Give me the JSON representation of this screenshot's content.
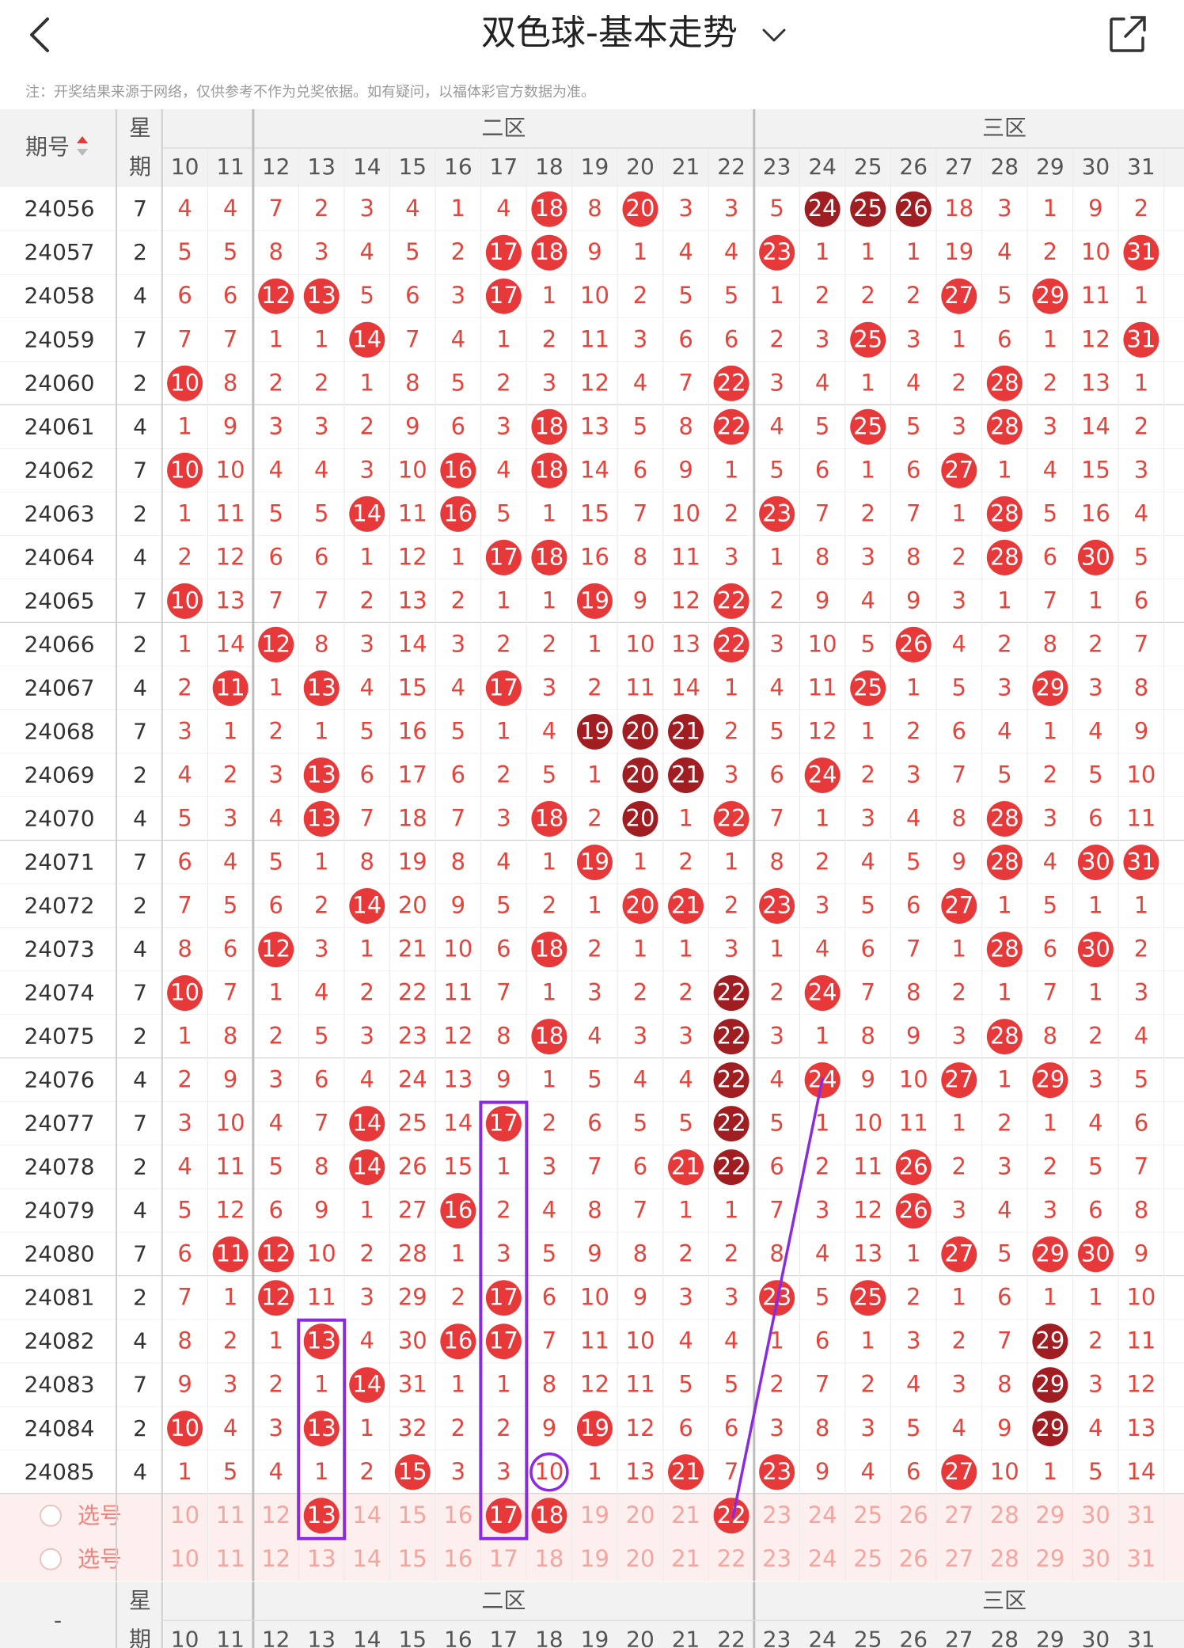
{
  "header": {
    "title": "双色球-基本走势",
    "note": "注：开奖结果来源于网络，仅供参考不作为兑奖依据。如有疑问，以福体彩官方数据为准。"
  },
  "table": {
    "period_label": "期号",
    "weekday_label": [
      "星",
      "期"
    ],
    "zones": [
      "二区",
      "三区"
    ],
    "columns": [
      10,
      11,
      12,
      13,
      14,
      15,
      16,
      17,
      18,
      19,
      20,
      21,
      22,
      23,
      24,
      25,
      26,
      27,
      28,
      29,
      30,
      31
    ],
    "rows": [
      {
        "period": "24056",
        "weekday": 7,
        "cells": [
          4,
          4,
          7,
          2,
          3,
          4,
          1,
          4,
          18,
          8,
          20,
          3,
          3,
          5,
          24,
          25,
          26,
          18,
          3,
          1,
          9,
          2
        ],
        "marks": "........h.h...ddd....."
      },
      {
        "period": "24057",
        "weekday": 2,
        "cells": [
          5,
          5,
          8,
          3,
          4,
          5,
          2,
          17,
          18,
          9,
          1,
          4,
          4,
          23,
          1,
          1,
          1,
          19,
          4,
          2,
          10,
          31
        ],
        "marks": ".......hh....h.......h"
      },
      {
        "period": "24058",
        "weekday": 4,
        "cells": [
          6,
          6,
          12,
          13,
          5,
          6,
          3,
          17,
          1,
          10,
          2,
          5,
          5,
          1,
          2,
          2,
          2,
          27,
          5,
          29,
          11,
          1
        ],
        "marks": "..hh...h.........h.h.."
      },
      {
        "period": "24059",
        "weekday": 7,
        "cells": [
          7,
          7,
          1,
          1,
          14,
          7,
          4,
          1,
          2,
          11,
          3,
          6,
          6,
          2,
          3,
          25,
          3,
          1,
          6,
          1,
          12,
          31
        ],
        "marks": "....h..........h.....h"
      },
      {
        "period": "24060",
        "weekday": 2,
        "cells": [
          10,
          8,
          2,
          2,
          1,
          8,
          5,
          2,
          3,
          12,
          4,
          7,
          22,
          3,
          4,
          1,
          4,
          2,
          28,
          2,
          13,
          1
        ],
        "marks": "h...........h.....h..."
      },
      {
        "period": "24061",
        "weekday": 4,
        "cells": [
          1,
          9,
          3,
          3,
          2,
          9,
          6,
          3,
          18,
          13,
          5,
          8,
          22,
          4,
          5,
          25,
          5,
          3,
          28,
          3,
          14,
          2
        ],
        "marks": "........h...h..h..h..."
      },
      {
        "period": "24062",
        "weekday": 7,
        "cells": [
          10,
          10,
          4,
          4,
          3,
          10,
          16,
          4,
          18,
          14,
          6,
          9,
          1,
          5,
          6,
          1,
          6,
          27,
          1,
          4,
          15,
          3
        ],
        "marks": "h.....h.h........h...."
      },
      {
        "period": "24063",
        "weekday": 2,
        "cells": [
          1,
          11,
          5,
          5,
          14,
          11,
          16,
          5,
          1,
          15,
          7,
          10,
          2,
          23,
          7,
          2,
          7,
          1,
          28,
          5,
          16,
          4
        ],
        "marks": "....h.h......h....h..."
      },
      {
        "period": "24064",
        "weekday": 4,
        "cells": [
          2,
          12,
          6,
          6,
          1,
          12,
          1,
          17,
          18,
          16,
          8,
          11,
          3,
          1,
          8,
          3,
          8,
          2,
          28,
          6,
          30,
          5
        ],
        "marks": ".......hh.........h.h."
      },
      {
        "period": "24065",
        "weekday": 7,
        "cells": [
          10,
          13,
          7,
          7,
          2,
          13,
          2,
          1,
          1,
          19,
          9,
          12,
          22,
          2,
          9,
          4,
          9,
          3,
          1,
          7,
          1,
          6
        ],
        "marks": "h........h..h........."
      },
      {
        "period": "24066",
        "weekday": 2,
        "cells": [
          1,
          14,
          12,
          8,
          3,
          14,
          3,
          2,
          2,
          1,
          10,
          13,
          22,
          3,
          10,
          5,
          26,
          4,
          2,
          8,
          2,
          7
        ],
        "marks": "..h.........h...h....."
      },
      {
        "period": "24067",
        "weekday": 4,
        "cells": [
          2,
          11,
          1,
          13,
          4,
          15,
          4,
          17,
          3,
          2,
          11,
          14,
          1,
          4,
          11,
          25,
          1,
          5,
          3,
          29,
          3,
          8
        ],
        "marks": ".h.h...h.......h...h.."
      },
      {
        "period": "24068",
        "weekday": 7,
        "cells": [
          3,
          1,
          2,
          1,
          5,
          16,
          5,
          1,
          4,
          19,
          20,
          21,
          2,
          5,
          12,
          1,
          2,
          6,
          4,
          1,
          4,
          9
        ],
        "marks": ".........ddd.........."
      },
      {
        "period": "24069",
        "weekday": 2,
        "cells": [
          4,
          2,
          3,
          13,
          6,
          17,
          6,
          2,
          5,
          1,
          20,
          21,
          3,
          6,
          24,
          2,
          3,
          7,
          5,
          2,
          5,
          10
        ],
        "marks": "...h......dd..h......."
      },
      {
        "period": "24070",
        "weekday": 4,
        "cells": [
          5,
          3,
          4,
          13,
          7,
          18,
          7,
          3,
          18,
          2,
          20,
          1,
          22,
          7,
          1,
          3,
          4,
          8,
          28,
          3,
          6,
          11
        ],
        "marks": "...h....h.d.h.....h..."
      },
      {
        "period": "24071",
        "weekday": 7,
        "cells": [
          6,
          4,
          5,
          1,
          8,
          19,
          8,
          4,
          1,
          19,
          1,
          2,
          1,
          8,
          2,
          4,
          5,
          9,
          28,
          4,
          30,
          31
        ],
        "marks": ".........h........h.hh"
      },
      {
        "period": "24072",
        "weekday": 2,
        "cells": [
          7,
          5,
          6,
          2,
          14,
          20,
          9,
          5,
          2,
          1,
          20,
          21,
          2,
          23,
          3,
          5,
          6,
          27,
          1,
          5,
          1,
          1
        ],
        "marks": "....h.....hh.h...h...."
      },
      {
        "period": "24073",
        "weekday": 4,
        "cells": [
          8,
          6,
          12,
          3,
          1,
          21,
          10,
          6,
          18,
          2,
          1,
          1,
          3,
          1,
          4,
          6,
          7,
          1,
          28,
          6,
          30,
          2
        ],
        "marks": "..h.....h.........h.h."
      },
      {
        "period": "24074",
        "weekday": 7,
        "cells": [
          10,
          7,
          1,
          4,
          2,
          22,
          11,
          7,
          1,
          3,
          2,
          2,
          22,
          2,
          24,
          7,
          8,
          2,
          1,
          7,
          1,
          3
        ],
        "marks": "h...........d.h......."
      },
      {
        "period": "24075",
        "weekday": 2,
        "cells": [
          1,
          8,
          2,
          5,
          3,
          23,
          12,
          8,
          18,
          4,
          3,
          3,
          22,
          3,
          1,
          8,
          9,
          3,
          28,
          8,
          2,
          4
        ],
        "marks": "........h...d.....h..."
      },
      {
        "period": "24076",
        "weekday": 4,
        "cells": [
          2,
          9,
          3,
          6,
          4,
          24,
          13,
          9,
          1,
          5,
          4,
          4,
          22,
          4,
          24,
          9,
          10,
          27,
          1,
          29,
          3,
          5
        ],
        "marks": "............d.h..h.h.."
      },
      {
        "period": "24077",
        "weekday": 7,
        "cells": [
          3,
          10,
          4,
          7,
          14,
          25,
          14,
          17,
          2,
          6,
          5,
          5,
          22,
          5,
          1,
          10,
          11,
          1,
          2,
          1,
          4,
          6
        ],
        "marks": "....h..h....d........."
      },
      {
        "period": "24078",
        "weekday": 2,
        "cells": [
          4,
          11,
          5,
          8,
          14,
          26,
          15,
          1,
          3,
          7,
          6,
          21,
          22,
          6,
          2,
          11,
          26,
          2,
          3,
          2,
          5,
          7
        ],
        "marks": "....h......hd...h....."
      },
      {
        "period": "24079",
        "weekday": 4,
        "cells": [
          5,
          12,
          6,
          9,
          1,
          27,
          16,
          2,
          4,
          8,
          7,
          1,
          1,
          7,
          3,
          12,
          26,
          3,
          4,
          3,
          6,
          8
        ],
        "marks": "......h.........h....."
      },
      {
        "period": "24080",
        "weekday": 7,
        "cells": [
          6,
          11,
          12,
          10,
          2,
          28,
          1,
          3,
          5,
          9,
          8,
          2,
          2,
          8,
          4,
          13,
          1,
          27,
          5,
          29,
          30,
          9
        ],
        "marks": ".hh..............h.hh."
      },
      {
        "period": "24081",
        "weekday": 2,
        "cells": [
          7,
          1,
          12,
          11,
          3,
          29,
          2,
          17,
          6,
          10,
          9,
          3,
          3,
          23,
          5,
          25,
          2,
          1,
          6,
          1,
          1,
          10
        ],
        "marks": "..h....h.....h.h......"
      },
      {
        "period": "24082",
        "weekday": 4,
        "cells": [
          8,
          2,
          1,
          13,
          4,
          30,
          16,
          17,
          7,
          11,
          10,
          4,
          4,
          1,
          6,
          1,
          3,
          2,
          7,
          29,
          2,
          11
        ],
        "marks": "...h..hh...........d.."
      },
      {
        "period": "24083",
        "weekday": 7,
        "cells": [
          9,
          3,
          2,
          1,
          14,
          31,
          1,
          1,
          8,
          12,
          11,
          5,
          5,
          2,
          7,
          2,
          4,
          3,
          8,
          29,
          3,
          12
        ],
        "marks": "....h..............d.."
      },
      {
        "period": "24084",
        "weekday": 2,
        "cells": [
          10,
          4,
          3,
          13,
          1,
          32,
          2,
          2,
          9,
          19,
          12,
          6,
          6,
          3,
          8,
          3,
          5,
          4,
          9,
          29,
          4,
          13
        ],
        "marks": "h..h.....h.........d.."
      },
      {
        "period": "24085",
        "weekday": 4,
        "cells": [
          1,
          5,
          4,
          1,
          2,
          15,
          3,
          3,
          10,
          1,
          13,
          21,
          7,
          23,
          9,
          4,
          6,
          27,
          10,
          1,
          5,
          14
        ],
        "marks": ".....h..o..h.h...h...."
      }
    ],
    "select_label": "选号",
    "select_rows": [
      {
        "marks": "...h...hh...h........."
      },
      {
        "marks": "......................"
      }
    ],
    "footer_period": "-"
  }
}
